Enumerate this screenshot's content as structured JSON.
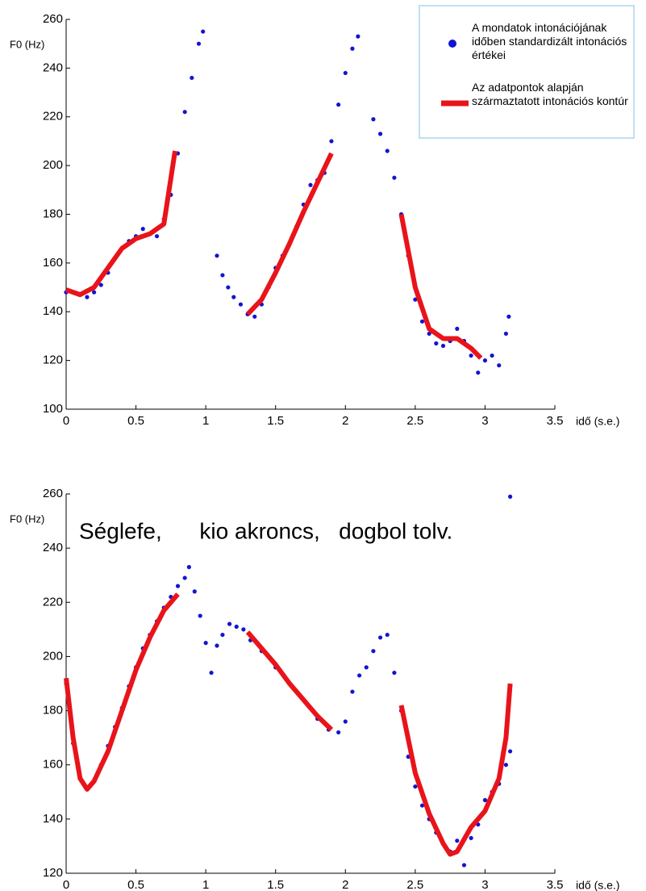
{
  "chart_data": [
    {
      "type": "scatter",
      "ylabel": "F0 (Hz)",
      "xlabel": "idő (s.e.)",
      "xlim": [
        0,
        3.5
      ],
      "xticks": [
        0,
        0.5,
        1,
        1.5,
        2,
        2.5,
        3,
        3.5
      ],
      "ylim": [
        100,
        260
      ],
      "yticks": [
        100,
        120,
        140,
        160,
        180,
        200,
        220,
        240,
        260
      ],
      "legend": "upper right",
      "series": [
        {
          "name": "A mondatok intonációjának időben standardizált intonációs értékei",
          "type": "scatter",
          "color": "#1414d2",
          "x": [
            0,
            0.05,
            0.1,
            0.15,
            0.2,
            0.25,
            0.3,
            0.35,
            0.4,
            0.45,
            0.5,
            0.55,
            0.6,
            0.65,
            0.7,
            0.75,
            0.8,
            0.85,
            0.9,
            0.95,
            0.98,
            1.08,
            1.12,
            1.16,
            1.2,
            1.25,
            1.3,
            1.35,
            1.4,
            1.45,
            1.5,
            1.55,
            1.6,
            1.65,
            1.7,
            1.75,
            1.8,
            1.85,
            1.9,
            1.95,
            2.0,
            2.05,
            2.09,
            2.2,
            2.25,
            2.3,
            2.35,
            2.4,
            2.45,
            2.5,
            2.55,
            2.6,
            2.65,
            2.7,
            2.75,
            2.8,
            2.85,
            2.9,
            2.95,
            3.0,
            3.05,
            3.1,
            3.15,
            3.17
          ],
          "values": [
            148,
            148,
            147,
            146,
            148,
            151,
            156,
            162,
            166,
            169,
            171,
            174,
            172,
            171,
            178,
            188,
            205,
            222,
            236,
            250,
            255,
            163,
            155,
            150,
            146,
            143,
            139,
            138,
            143,
            150,
            158,
            163,
            168,
            175,
            184,
            192,
            194,
            197,
            210,
            225,
            238,
            248,
            253,
            219,
            213,
            206,
            195,
            180,
            163,
            145,
            136,
            131,
            127,
            126,
            128,
            133,
            128,
            122,
            115,
            120,
            122,
            118,
            131,
            138
          ]
        },
        {
          "name": "Az adatpontok alapján származtatott intonációs kontúr",
          "type": "line",
          "color": "#e8141a",
          "x": [
            0,
            0.1,
            0.2,
            0.3,
            0.4,
            0.5,
            0.6,
            0.7,
            0.78,
            1.0,
            1.3,
            1.4,
            1.5,
            1.6,
            1.7,
            1.8,
            1.9,
            2.1,
            2.4,
            2.5,
            2.6,
            2.7,
            2.8,
            2.9,
            2.97
          ],
          "values": [
            149,
            147,
            150,
            158,
            166,
            170,
            172,
            176,
            206,
            null,
            139,
            145,
            156,
            168,
            181,
            193,
            205,
            null,
            180,
            150,
            133,
            129,
            129,
            125,
            121
          ]
        }
      ]
    },
    {
      "type": "scatter",
      "ylabel": "F0 (Hz)",
      "xlabel": "idő (s.e.)",
      "annotation": "Séglefe,      kio akroncs,   dogbol tolv.",
      "xlim": [
        0,
        3.5
      ],
      "xticks": [
        0,
        0.5,
        1,
        1.5,
        2,
        2.5,
        3,
        3.5
      ],
      "ylim": [
        120,
        260
      ],
      "yticks": [
        120,
        140,
        160,
        180,
        200,
        220,
        240,
        260
      ],
      "series": [
        {
          "type": "scatter",
          "color": "#1414d2",
          "x": [
            0,
            0.05,
            0.1,
            0.15,
            0.2,
            0.25,
            0.3,
            0.35,
            0.4,
            0.45,
            0.5,
            0.55,
            0.6,
            0.65,
            0.7,
            0.75,
            0.8,
            0.85,
            0.88,
            0.92,
            0.96,
            1.0,
            1.04,
            1.08,
            1.12,
            1.17,
            1.22,
            1.27,
            1.32,
            1.4,
            1.5,
            1.6,
            1.7,
            1.8,
            1.88,
            1.95,
            2.0,
            2.05,
            2.1,
            2.15,
            2.2,
            2.25,
            2.3,
            2.35,
            2.4,
            2.45,
            2.5,
            2.55,
            2.6,
            2.65,
            2.7,
            2.75,
            2.8,
            2.85,
            2.9,
            2.95,
            3.0,
            3.05,
            3.1,
            3.15,
            3.18,
            3.18
          ],
          "values": [
            190,
            168,
            155,
            151,
            154,
            160,
            167,
            174,
            181,
            189,
            196,
            203,
            208,
            213,
            218,
            222,
            226,
            229,
            233,
            224,
            215,
            205,
            194,
            204,
            208,
            212,
            211,
            210,
            206,
            202,
            196,
            190,
            184,
            177,
            173,
            172,
            176,
            187,
            193,
            196,
            202,
            207,
            208,
            194,
            180,
            163,
            152,
            145,
            140,
            135,
            131,
            128,
            132,
            123,
            133,
            138,
            147,
            150,
            153,
            160,
            165,
            259
          ]
        },
        {
          "type": "line",
          "color": "#e8141a",
          "x": [
            0,
            0.05,
            0.1,
            0.15,
            0.2,
            0.3,
            0.4,
            0.5,
            0.6,
            0.7,
            0.8,
            1.0,
            1.3,
            1.4,
            1.5,
            1.6,
            1.7,
            1.8,
            1.9,
            2.1,
            2.4,
            2.5,
            2.6,
            2.7,
            2.75,
            2.8,
            2.9,
            3.0,
            3.1,
            3.15,
            3.18
          ],
          "values": [
            192,
            170,
            155,
            151,
            154,
            165,
            180,
            195,
            207,
            217,
            223,
            null,
            209,
            203,
            197,
            190,
            184,
            178,
            173,
            null,
            182,
            157,
            142,
            131,
            127,
            128,
            137,
            143,
            155,
            170,
            190
          ]
        }
      ]
    }
  ]
}
